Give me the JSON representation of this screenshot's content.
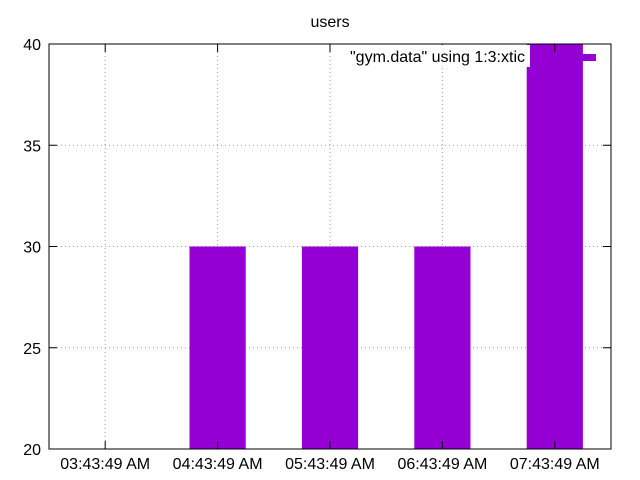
{
  "chart_data": {
    "type": "bar",
    "title": "users",
    "xlabel": "",
    "ylabel": "",
    "categories": [
      "03:43:49 AM",
      "04:43:49 AM",
      "05:43:49 AM",
      "06:43:49 AM",
      "07:43:49 AM"
    ],
    "series": [
      {
        "name": "\"gym.data\" using 1:3:xtic",
        "values": [
          20,
          30,
          30,
          30,
          40
        ],
        "color": "#9400d3"
      }
    ],
    "ylim": [
      20,
      40
    ],
    "yticks": [
      "20",
      "25",
      "30",
      "35",
      "40"
    ],
    "grid": true,
    "legend_position": "top-right"
  }
}
